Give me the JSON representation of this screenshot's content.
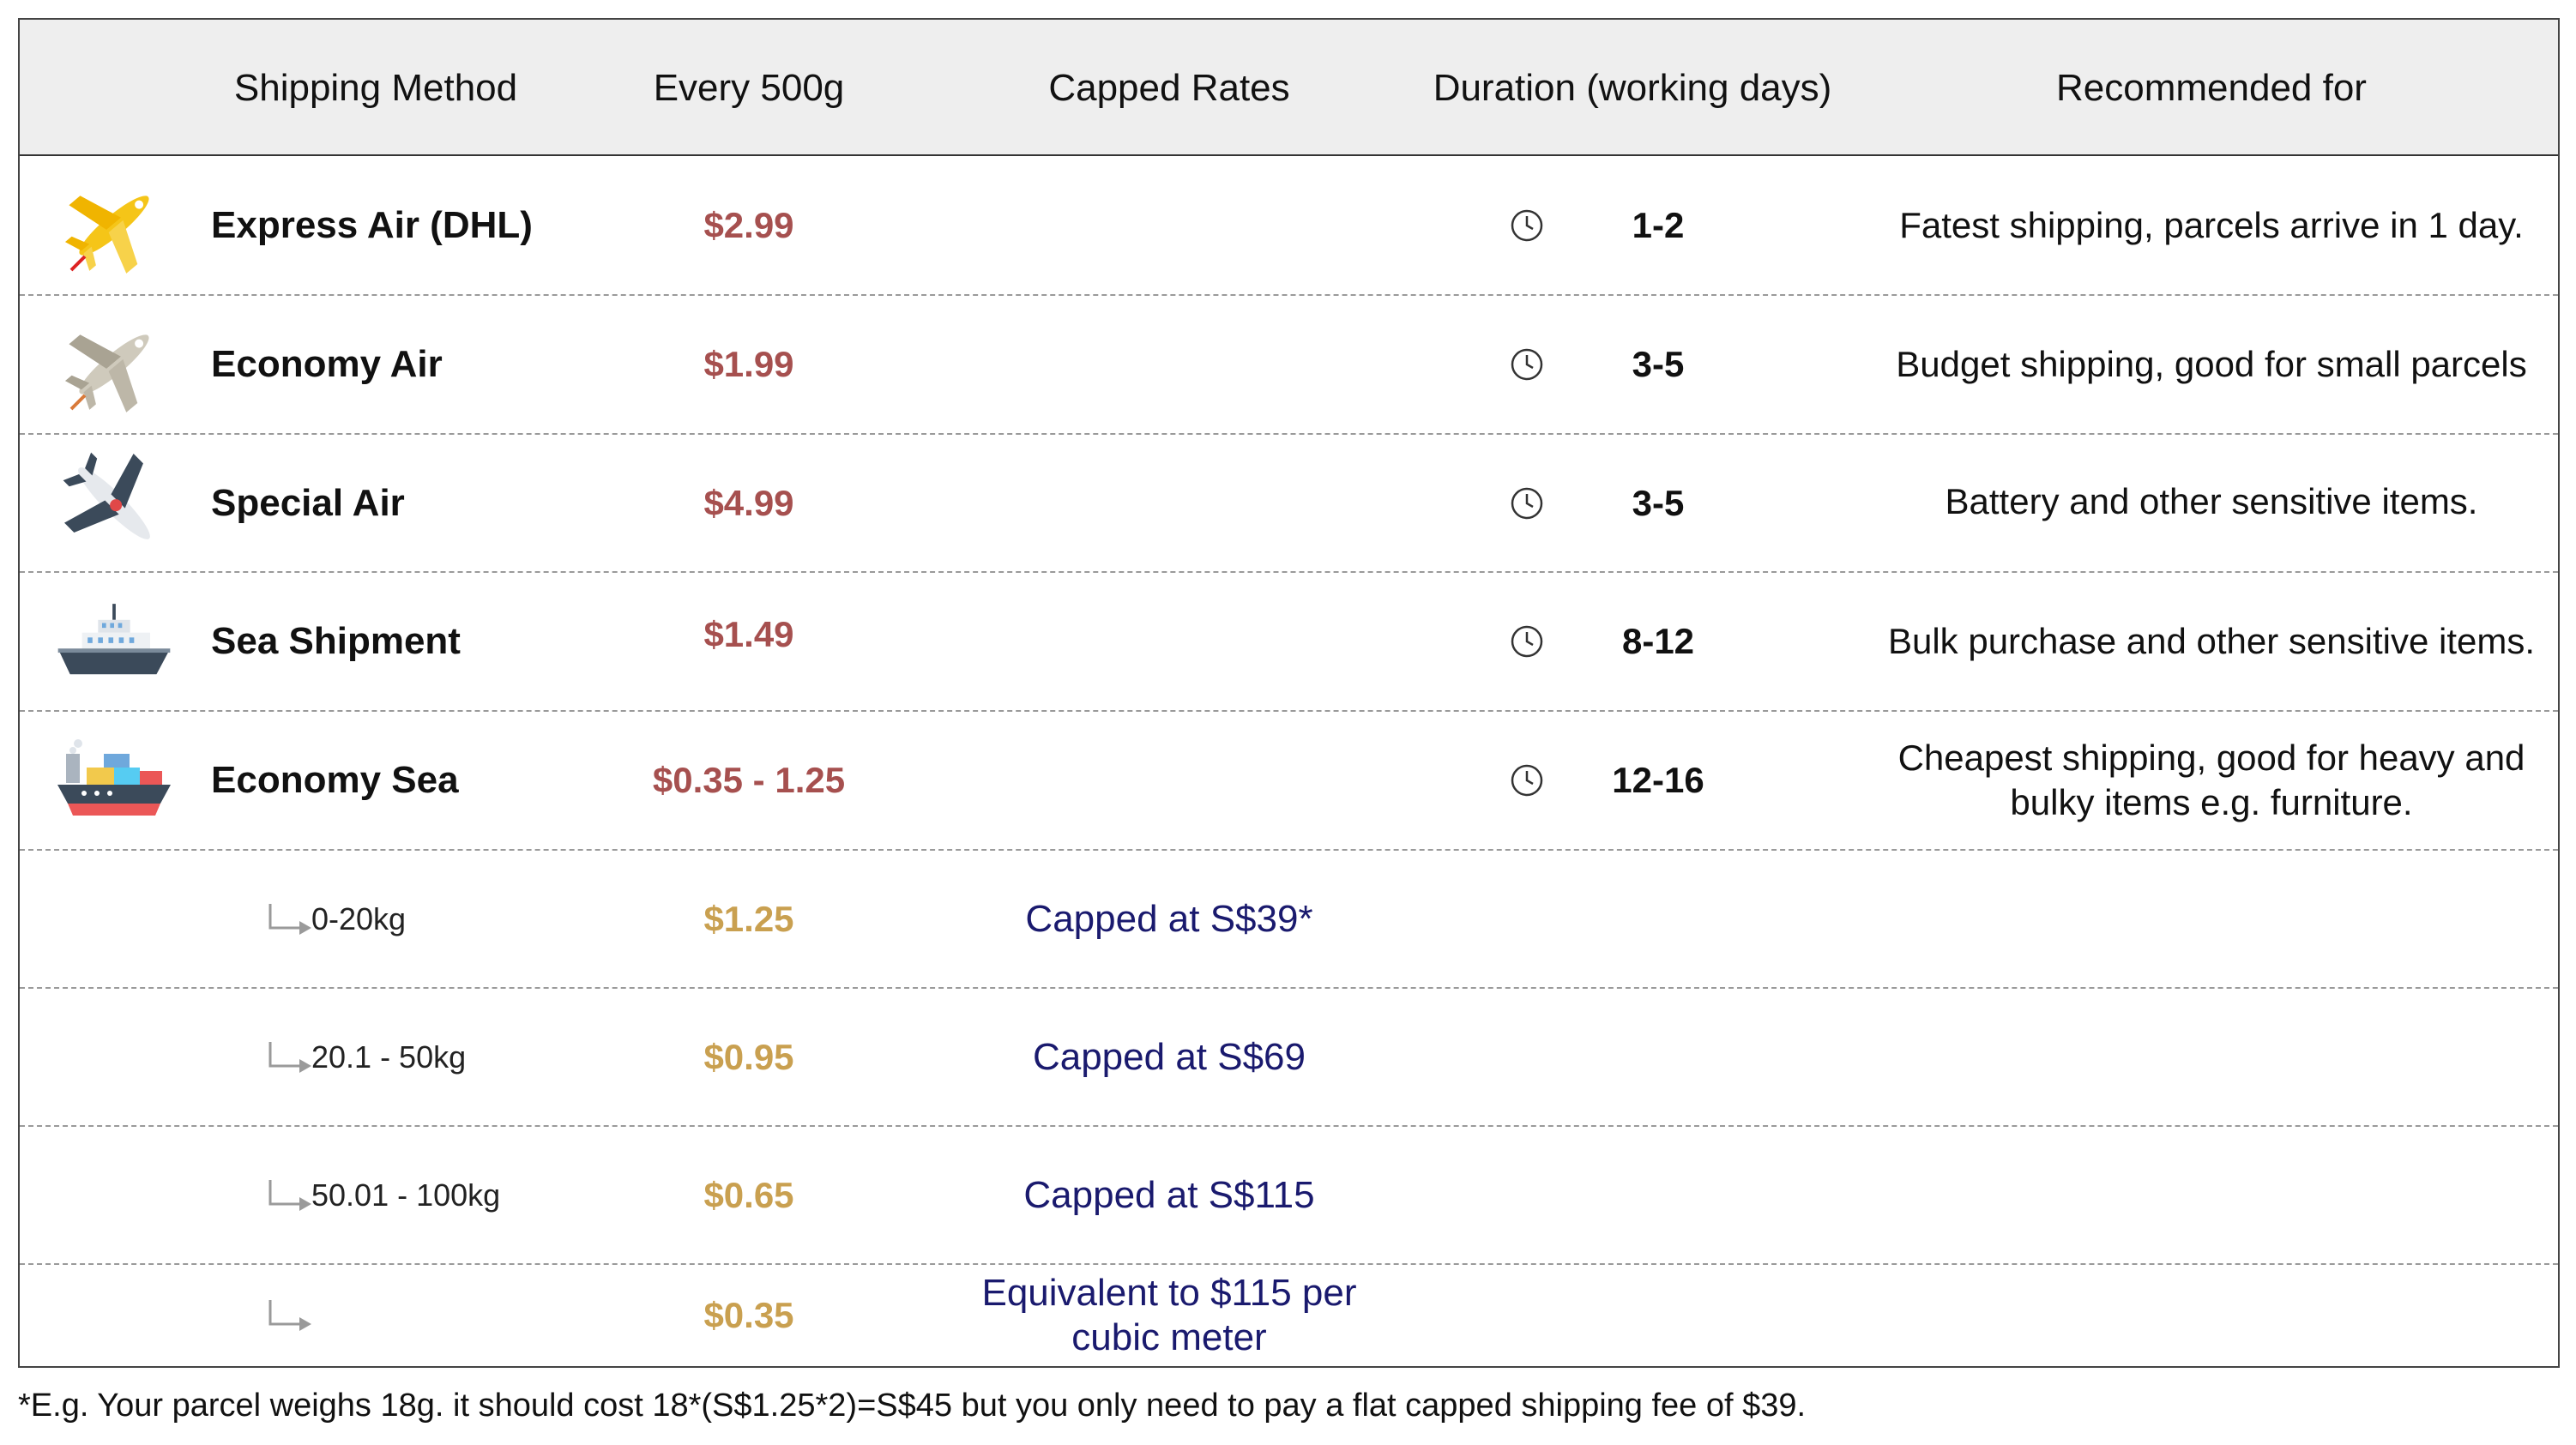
{
  "header": {
    "method": "Shipping Method",
    "every": "Every 500g",
    "capped": "Capped Rates",
    "duration": "Duration (working days)",
    "recommended": "Recommended for"
  },
  "rows": [
    {
      "method": "Express Air (DHL)",
      "price": "$2.99",
      "days": "1-2",
      "rec": "Fatest shipping, parcels arrive in 1 day.",
      "icon": "yellow-airplane-icon"
    },
    {
      "method": "Economy Air",
      "price": "$1.99",
      "days": "3-5",
      "rec": "Budget shipping, good for small parcels",
      "icon": "grey-airplane-icon"
    },
    {
      "method": "Special Air",
      "price": "$4.99",
      "days": "3-5",
      "rec": "Battery and other sensitive items.",
      "icon": "special-airplane-icon"
    },
    {
      "method": "Sea Shipment",
      "price": "$1.49",
      "days": "8-12",
      "rec": "Bulk purchase and other sensitive items.",
      "icon": "ship-icon"
    },
    {
      "method": "Economy Sea",
      "price": "$0.35 - 1.25",
      "days": "12-16",
      "rec": "Cheapest shipping, good for heavy and bulky items e.g. furniture.",
      "icon": "cargo-ship-icon"
    }
  ],
  "tiers": [
    {
      "range": "0-20kg",
      "price": "$1.25",
      "capped": "Capped at S$39*"
    },
    {
      "range": "20.1 - 50kg",
      "price": "$0.95",
      "capped": "Capped at S$69"
    },
    {
      "range": "50.01 - 100kg",
      "price": "$0.65",
      "capped": "Capped at S$115"
    },
    {
      "range": "",
      "price": "$0.35",
      "capped": "Equivalent to $115 per cubic meter"
    }
  ],
  "footnote": "*E.g. Your parcel weighs 18g. it should cost 18*(S$1.25*2)=S$45 but you only need to pay a flat capped shipping fee of $39.",
  "colors": {
    "main_price": "#a6504f",
    "tier_price": "#c9a050",
    "capped_text": "#1a1a6e",
    "header_bg": "#eeeeee"
  }
}
